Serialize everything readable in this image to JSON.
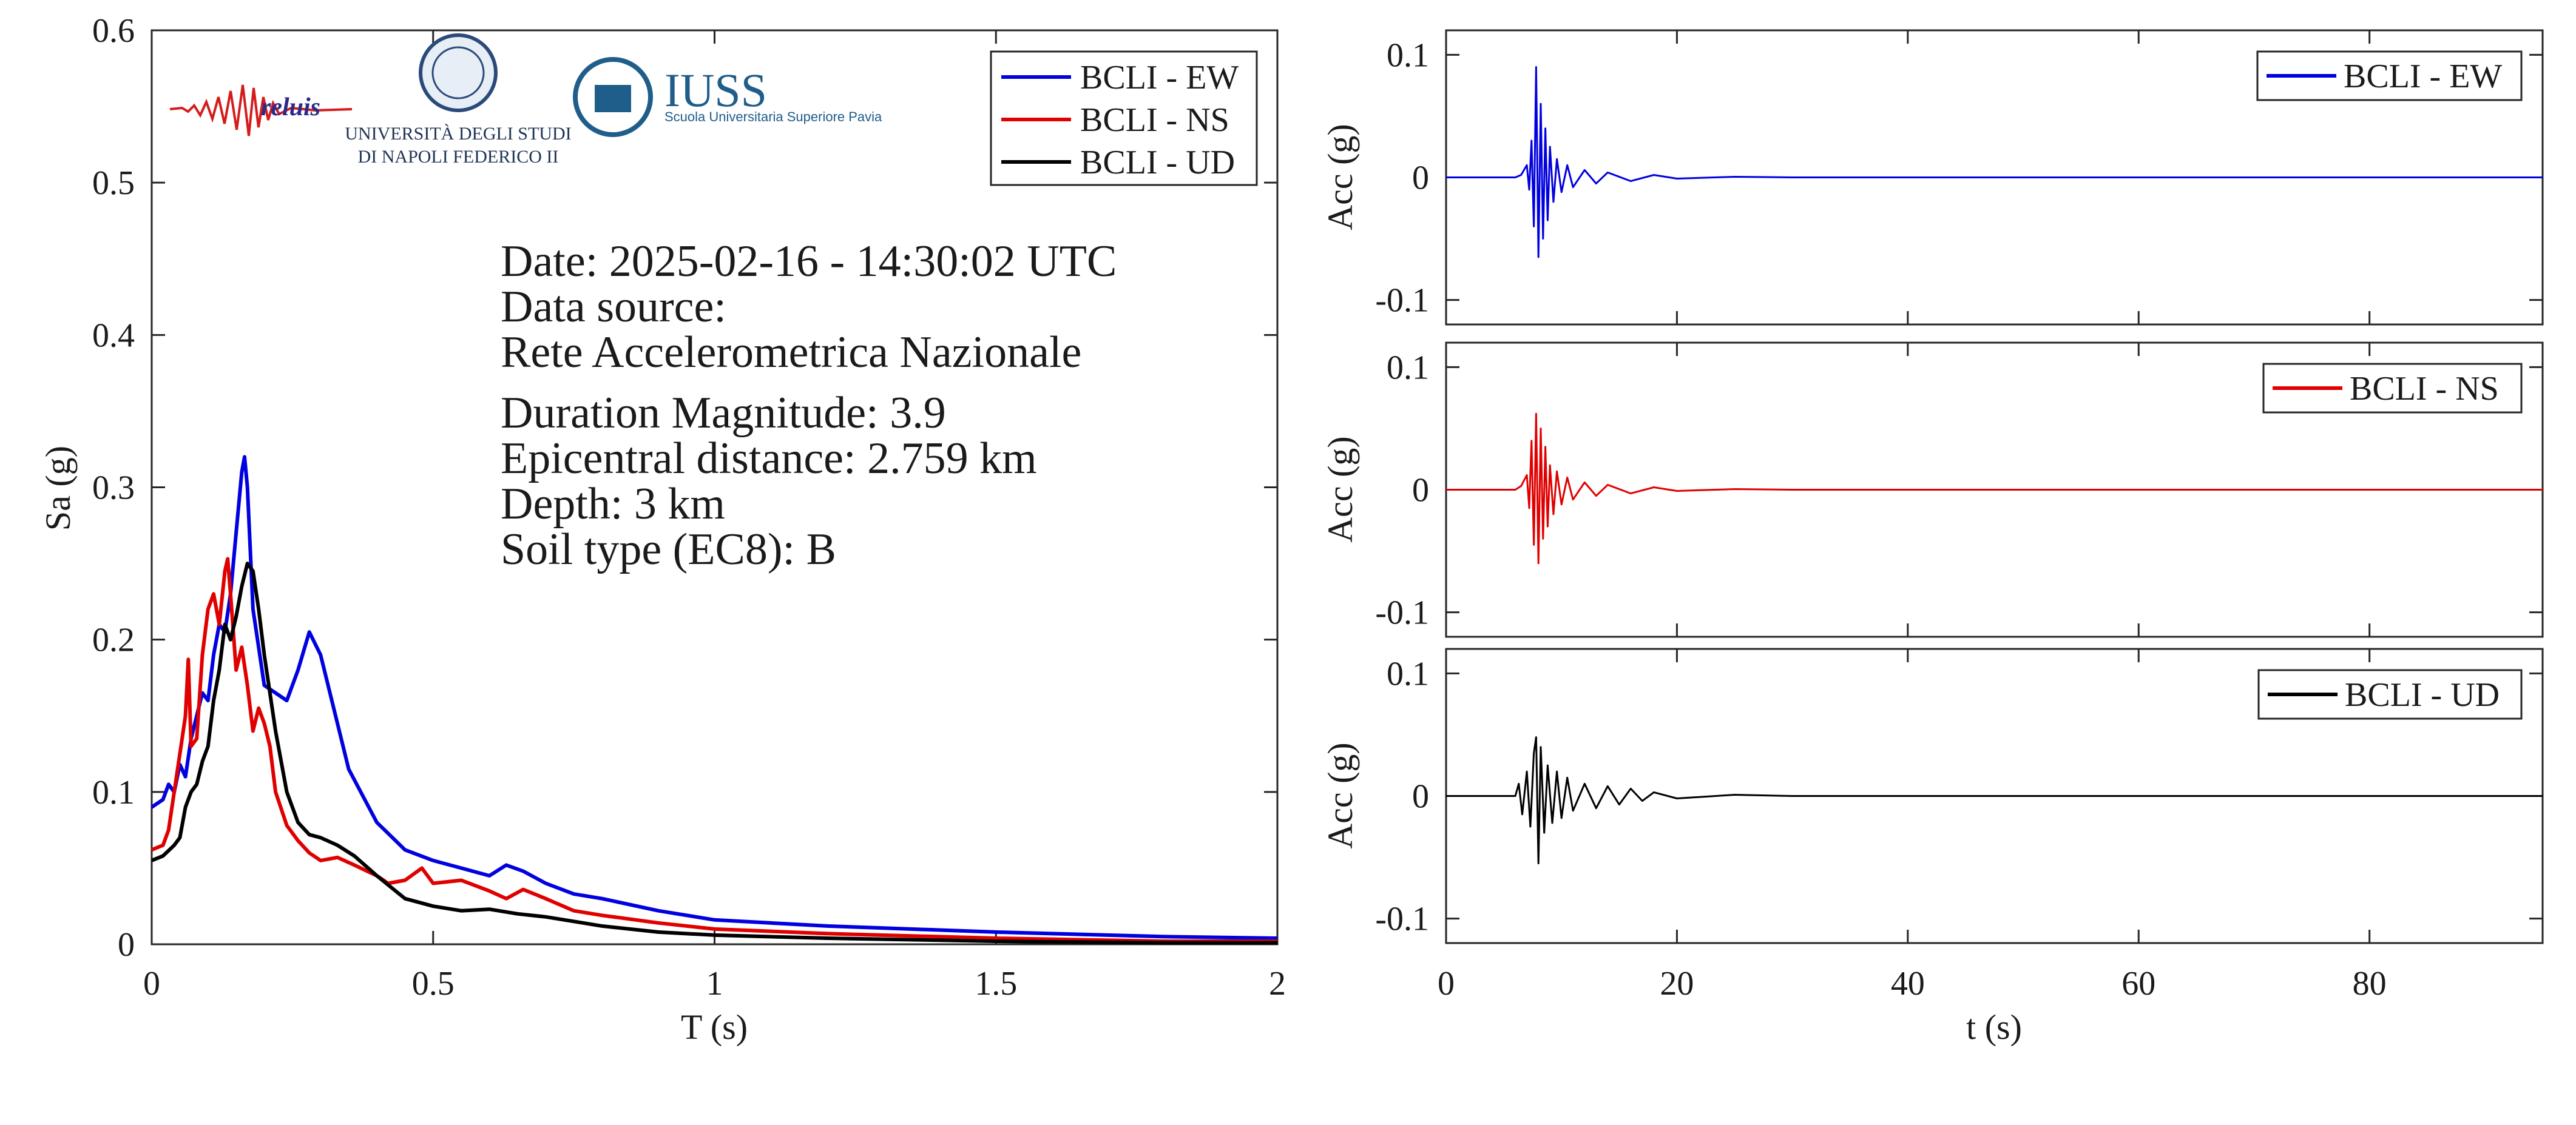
{
  "logos": {
    "reluis": "reluis",
    "unina_line1": "UNIVERSITÀ DEGLI STUDI",
    "unina_line2": "DI NAPOLI FEDERICO II",
    "iuss_title": "IUSS",
    "iuss_subtitle": "Scuola Universitaria Superiore Pavia"
  },
  "info": {
    "date": "Date: 2025-02-16 - 14:30:02 UTC",
    "source_label": "Data source:",
    "source_value": "Rete Accelerometrica Nazionale",
    "magnitude": "Duration Magnitude: 3.9",
    "distance": "Epicentral distance: 2.759 km",
    "depth": "Depth: 3 km",
    "soil": "Soil type (EC8): B"
  },
  "colors": {
    "EW": "#0000e0",
    "NS": "#e00000",
    "UD": "#000000",
    "axis": "#262626"
  },
  "chart_data": [
    {
      "type": "line",
      "xlabel": "T (s)",
      "ylabel": "Sa (g)",
      "xlim": [
        0,
        2
      ],
      "ylim": [
        0,
        0.6
      ],
      "xticks": [
        0,
        0.5,
        1,
        1.5,
        2
      ],
      "xticklabels": [
        "0",
        "0.5",
        "1",
        "1.5",
        "2"
      ],
      "yticks": [
        0,
        0.1,
        0.2,
        0.3,
        0.4,
        0.5,
        0.6
      ],
      "yticklabels": [
        "0",
        "0.1",
        "0.2",
        "0.3",
        "0.4",
        "0.5",
        "0.6"
      ],
      "grid": false,
      "legend": "top-right",
      "series": [
        {
          "name": "BCLI - EW",
          "color": "#0000e0",
          "x": [
            0,
            0.02,
            0.03,
            0.04,
            0.05,
            0.06,
            0.07,
            0.08,
            0.09,
            0.1,
            0.11,
            0.12,
            0.13,
            0.14,
            0.15,
            0.16,
            0.165,
            0.17,
            0.18,
            0.2,
            0.22,
            0.24,
            0.26,
            0.28,
            0.3,
            0.32,
            0.35,
            0.4,
            0.45,
            0.5,
            0.55,
            0.6,
            0.63,
            0.66,
            0.7,
            0.75,
            0.8,
            0.9,
            1.0,
            1.2,
            1.5,
            1.8,
            2.0
          ],
          "y": [
            0.09,
            0.095,
            0.105,
            0.1,
            0.118,
            0.11,
            0.135,
            0.15,
            0.165,
            0.16,
            0.19,
            0.21,
            0.205,
            0.23,
            0.27,
            0.31,
            0.32,
            0.3,
            0.22,
            0.17,
            0.165,
            0.16,
            0.18,
            0.205,
            0.19,
            0.16,
            0.115,
            0.08,
            0.062,
            0.055,
            0.05,
            0.045,
            0.052,
            0.048,
            0.04,
            0.033,
            0.03,
            0.022,
            0.016,
            0.012,
            0.008,
            0.005,
            0.004
          ]
        },
        {
          "name": "BCLI - NS",
          "color": "#e00000",
          "x": [
            0,
            0.02,
            0.03,
            0.04,
            0.05,
            0.06,
            0.065,
            0.07,
            0.08,
            0.09,
            0.1,
            0.11,
            0.12,
            0.13,
            0.135,
            0.14,
            0.15,
            0.16,
            0.17,
            0.18,
            0.19,
            0.2,
            0.21,
            0.22,
            0.24,
            0.26,
            0.28,
            0.3,
            0.33,
            0.36,
            0.4,
            0.42,
            0.45,
            0.48,
            0.5,
            0.55,
            0.6,
            0.63,
            0.66,
            0.7,
            0.75,
            0.8,
            0.9,
            1.0,
            1.2,
            1.5,
            1.8,
            2.0
          ],
          "y": [
            0.062,
            0.065,
            0.075,
            0.1,
            0.125,
            0.15,
            0.187,
            0.13,
            0.135,
            0.19,
            0.22,
            0.23,
            0.21,
            0.245,
            0.253,
            0.23,
            0.18,
            0.195,
            0.17,
            0.14,
            0.155,
            0.145,
            0.13,
            0.1,
            0.078,
            0.068,
            0.06,
            0.055,
            0.057,
            0.052,
            0.045,
            0.04,
            0.042,
            0.05,
            0.04,
            0.042,
            0.035,
            0.03,
            0.036,
            0.03,
            0.022,
            0.019,
            0.014,
            0.01,
            0.007,
            0.004,
            0.002,
            0.002
          ]
        },
        {
          "name": "BCLI - UD",
          "color": "#000000",
          "x": [
            0,
            0.02,
            0.04,
            0.05,
            0.06,
            0.07,
            0.08,
            0.09,
            0.1,
            0.11,
            0.12,
            0.13,
            0.14,
            0.15,
            0.16,
            0.17,
            0.18,
            0.19,
            0.2,
            0.22,
            0.24,
            0.26,
            0.28,
            0.3,
            0.33,
            0.36,
            0.4,
            0.45,
            0.5,
            0.55,
            0.6,
            0.65,
            0.7,
            0.75,
            0.8,
            0.9,
            1.0,
            1.2,
            1.5,
            1.8,
            2.0
          ],
          "y": [
            0.055,
            0.058,
            0.065,
            0.07,
            0.09,
            0.1,
            0.105,
            0.12,
            0.13,
            0.16,
            0.18,
            0.21,
            0.2,
            0.215,
            0.235,
            0.25,
            0.245,
            0.22,
            0.19,
            0.14,
            0.1,
            0.08,
            0.072,
            0.07,
            0.065,
            0.058,
            0.045,
            0.03,
            0.025,
            0.022,
            0.023,
            0.02,
            0.018,
            0.015,
            0.012,
            0.008,
            0.006,
            0.004,
            0.002,
            0.001,
            0.001
          ]
        }
      ]
    },
    {
      "type": "line",
      "xlabel": "",
      "ylabel": "Acc (g)",
      "xlim": [
        0,
        95
      ],
      "ylim": [
        -0.12,
        0.12
      ],
      "yticks": [
        -0.1,
        0,
        0.1
      ],
      "yticklabels": [
        "-0.1",
        "0",
        "0.1"
      ],
      "legend": "top-right",
      "series": [
        {
          "name": "BCLI - EW",
          "color": "#0000e0",
          "x": [
            0,
            6.0,
            6.5,
            7.0,
            7.2,
            7.4,
            7.6,
            7.8,
            8.0,
            8.2,
            8.4,
            8.6,
            8.8,
            9.0,
            9.3,
            9.6,
            10.0,
            10.5,
            11,
            12,
            13,
            14,
            16,
            18,
            20,
            25,
            30,
            95
          ],
          "y": [
            0,
            0,
            0.002,
            0.01,
            -0.01,
            0.03,
            -0.04,
            0.09,
            -0.065,
            0.06,
            -0.05,
            0.04,
            -0.035,
            0.025,
            -0.02,
            0.015,
            -0.012,
            0.01,
            -0.008,
            0.006,
            -0.005,
            0.004,
            -0.003,
            0.002,
            -0.001,
            0.0005,
            0,
            0
          ]
        }
      ]
    },
    {
      "type": "line",
      "xlabel": "",
      "ylabel": "Acc (g)",
      "xlim": [
        0,
        95
      ],
      "ylim": [
        -0.12,
        0.12
      ],
      "yticks": [
        -0.1,
        0,
        0.1
      ],
      "yticklabels": [
        "-0.1",
        "0",
        "0.1"
      ],
      "legend": "top-right",
      "series": [
        {
          "name": "BCLI - NS",
          "color": "#e00000",
          "x": [
            0,
            6.0,
            6.5,
            7.0,
            7.2,
            7.4,
            7.6,
            7.8,
            8.0,
            8.2,
            8.4,
            8.6,
            8.8,
            9.0,
            9.3,
            9.6,
            10.0,
            10.5,
            11,
            12,
            13,
            14,
            16,
            18,
            20,
            25,
            30,
            95
          ],
          "y": [
            0,
            0,
            0.003,
            0.012,
            -0.015,
            0.04,
            -0.045,
            0.062,
            -0.06,
            0.05,
            -0.04,
            0.035,
            -0.03,
            0.02,
            -0.02,
            0.015,
            -0.012,
            0.01,
            -0.008,
            0.006,
            -0.005,
            0.004,
            -0.003,
            0.002,
            -0.001,
            0.0005,
            0,
            0
          ]
        }
      ]
    },
    {
      "type": "line",
      "xlabel": "t (s)",
      "ylabel": "Acc (g)",
      "xlim": [
        0,
        95
      ],
      "ylim": [
        -0.12,
        0.12
      ],
      "xticks": [
        0,
        20,
        40,
        60,
        80
      ],
      "xticklabels": [
        "0",
        "20",
        "40",
        "60",
        "80"
      ],
      "yticks": [
        -0.1,
        0,
        0.1
      ],
      "yticklabels": [
        "-0.1",
        "0",
        "0.1"
      ],
      "legend": "top-right",
      "series": [
        {
          "name": "BCLI - UD",
          "color": "#000000",
          "x": [
            0,
            6.0,
            6.3,
            6.6,
            7.0,
            7.3,
            7.6,
            7.8,
            8.0,
            8.2,
            8.5,
            8.8,
            9.2,
            9.6,
            10.0,
            10.5,
            11,
            12,
            13,
            14,
            15,
            16,
            17,
            18,
            20,
            25,
            30,
            95
          ],
          "y": [
            0,
            0,
            0.01,
            -0.015,
            0.02,
            -0.025,
            0.035,
            0.048,
            -0.055,
            0.04,
            -0.03,
            0.025,
            -0.022,
            0.02,
            -0.018,
            0.015,
            -0.012,
            0.01,
            -0.01,
            0.008,
            -0.007,
            0.006,
            -0.004,
            0.003,
            -0.002,
            0.001,
            0,
            0
          ]
        }
      ]
    }
  ]
}
